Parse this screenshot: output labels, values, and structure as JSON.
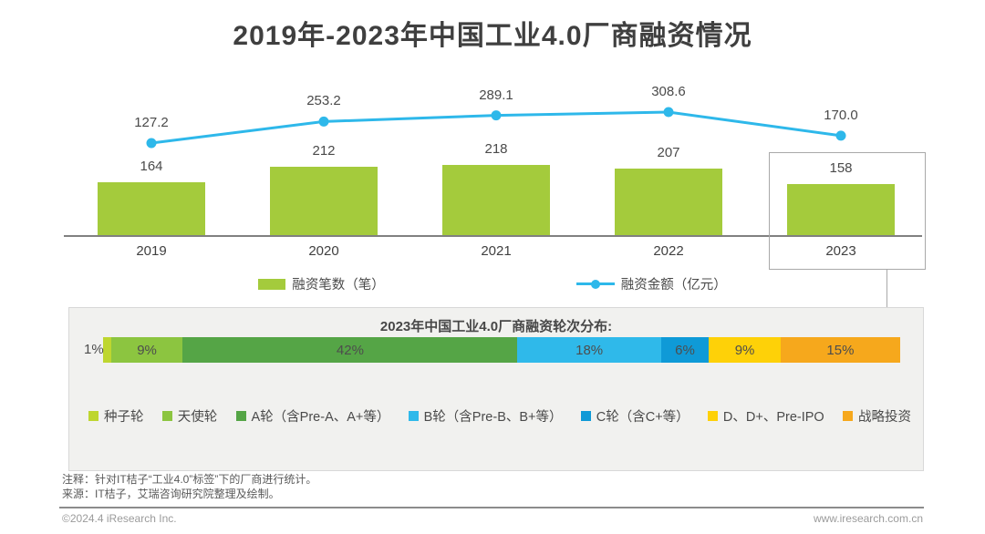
{
  "title": "2019年-2023年中国工业4.0厂商融资情况",
  "chart_data": [
    {
      "type": "bar",
      "subtype": "bar+line combo",
      "title": "2019年-2023年中国工业4.0厂商融资情况",
      "categories": [
        "2019",
        "2020",
        "2021",
        "2022",
        "2023"
      ],
      "series": [
        {
          "name": "融资笔数（笔）",
          "type": "bar",
          "values": [
            164,
            212,
            218,
            207,
            158
          ],
          "color": "#a4cb3c"
        },
        {
          "name": "融资金额（亿元）",
          "type": "line",
          "values": [
            127.2,
            253.2,
            289.1,
            308.6,
            170.0
          ],
          "labels": [
            "127.2",
            "253.2",
            "289.1",
            "308.6",
            "170.0"
          ],
          "color": "#2eb8ea"
        }
      ],
      "highlighted_category": "2023",
      "legend_position": "bottom",
      "grid": false
    },
    {
      "type": "bar",
      "subtype": "stacked-horizontal-bar",
      "title": "2023年中国工业4.0厂商融资轮次分布:",
      "segments": [
        {
          "label": "种子轮",
          "value_pct": 1,
          "text": "1%",
          "color": "#bed62f",
          "label_position": "outside-left"
        },
        {
          "label": "天使轮",
          "value_pct": 9,
          "text": "9%",
          "color": "#8cc540",
          "label_position": "inside"
        },
        {
          "label": "A轮（含Pre-A、A+等）",
          "value_pct": 42,
          "text": "42%",
          "color": "#55a546",
          "label_position": "inside"
        },
        {
          "label": "B轮（含Pre-B、B+等）",
          "value_pct": 18,
          "text": "18%",
          "color": "#2fb9ea",
          "label_position": "inside"
        },
        {
          "label": "C轮（含C+等）",
          "value_pct": 6,
          "text": "6%",
          "color": "#0f9ad7",
          "label_position": "inside"
        },
        {
          "label": "D、D+、Pre-IPO",
          "value_pct": 9,
          "text": "9%",
          "color": "#fed108",
          "label_position": "inside"
        },
        {
          "label": "战略投资",
          "value_pct": 15,
          "text": "15%",
          "color": "#f6a81c",
          "label_position": "inside"
        }
      ],
      "legend_position": "bottom"
    }
  ],
  "colors": {
    "bar_green": "#a4cb3c",
    "line_cyan": "#2eb8ea",
    "axis_gray": "#808080",
    "panel_bg": "#f1f1ef",
    "text_dark": "#4a4a4a"
  },
  "notes": [
    "注释：针对IT桔子“工业4.0”标签”下的厂商进行统计。",
    "来源：IT桔子，艾瑞咨询研究院整理及绘制。"
  ],
  "footer": {
    "left": "©2024.4 iResearch Inc.",
    "right": "www.iresearch.com.cn"
  }
}
